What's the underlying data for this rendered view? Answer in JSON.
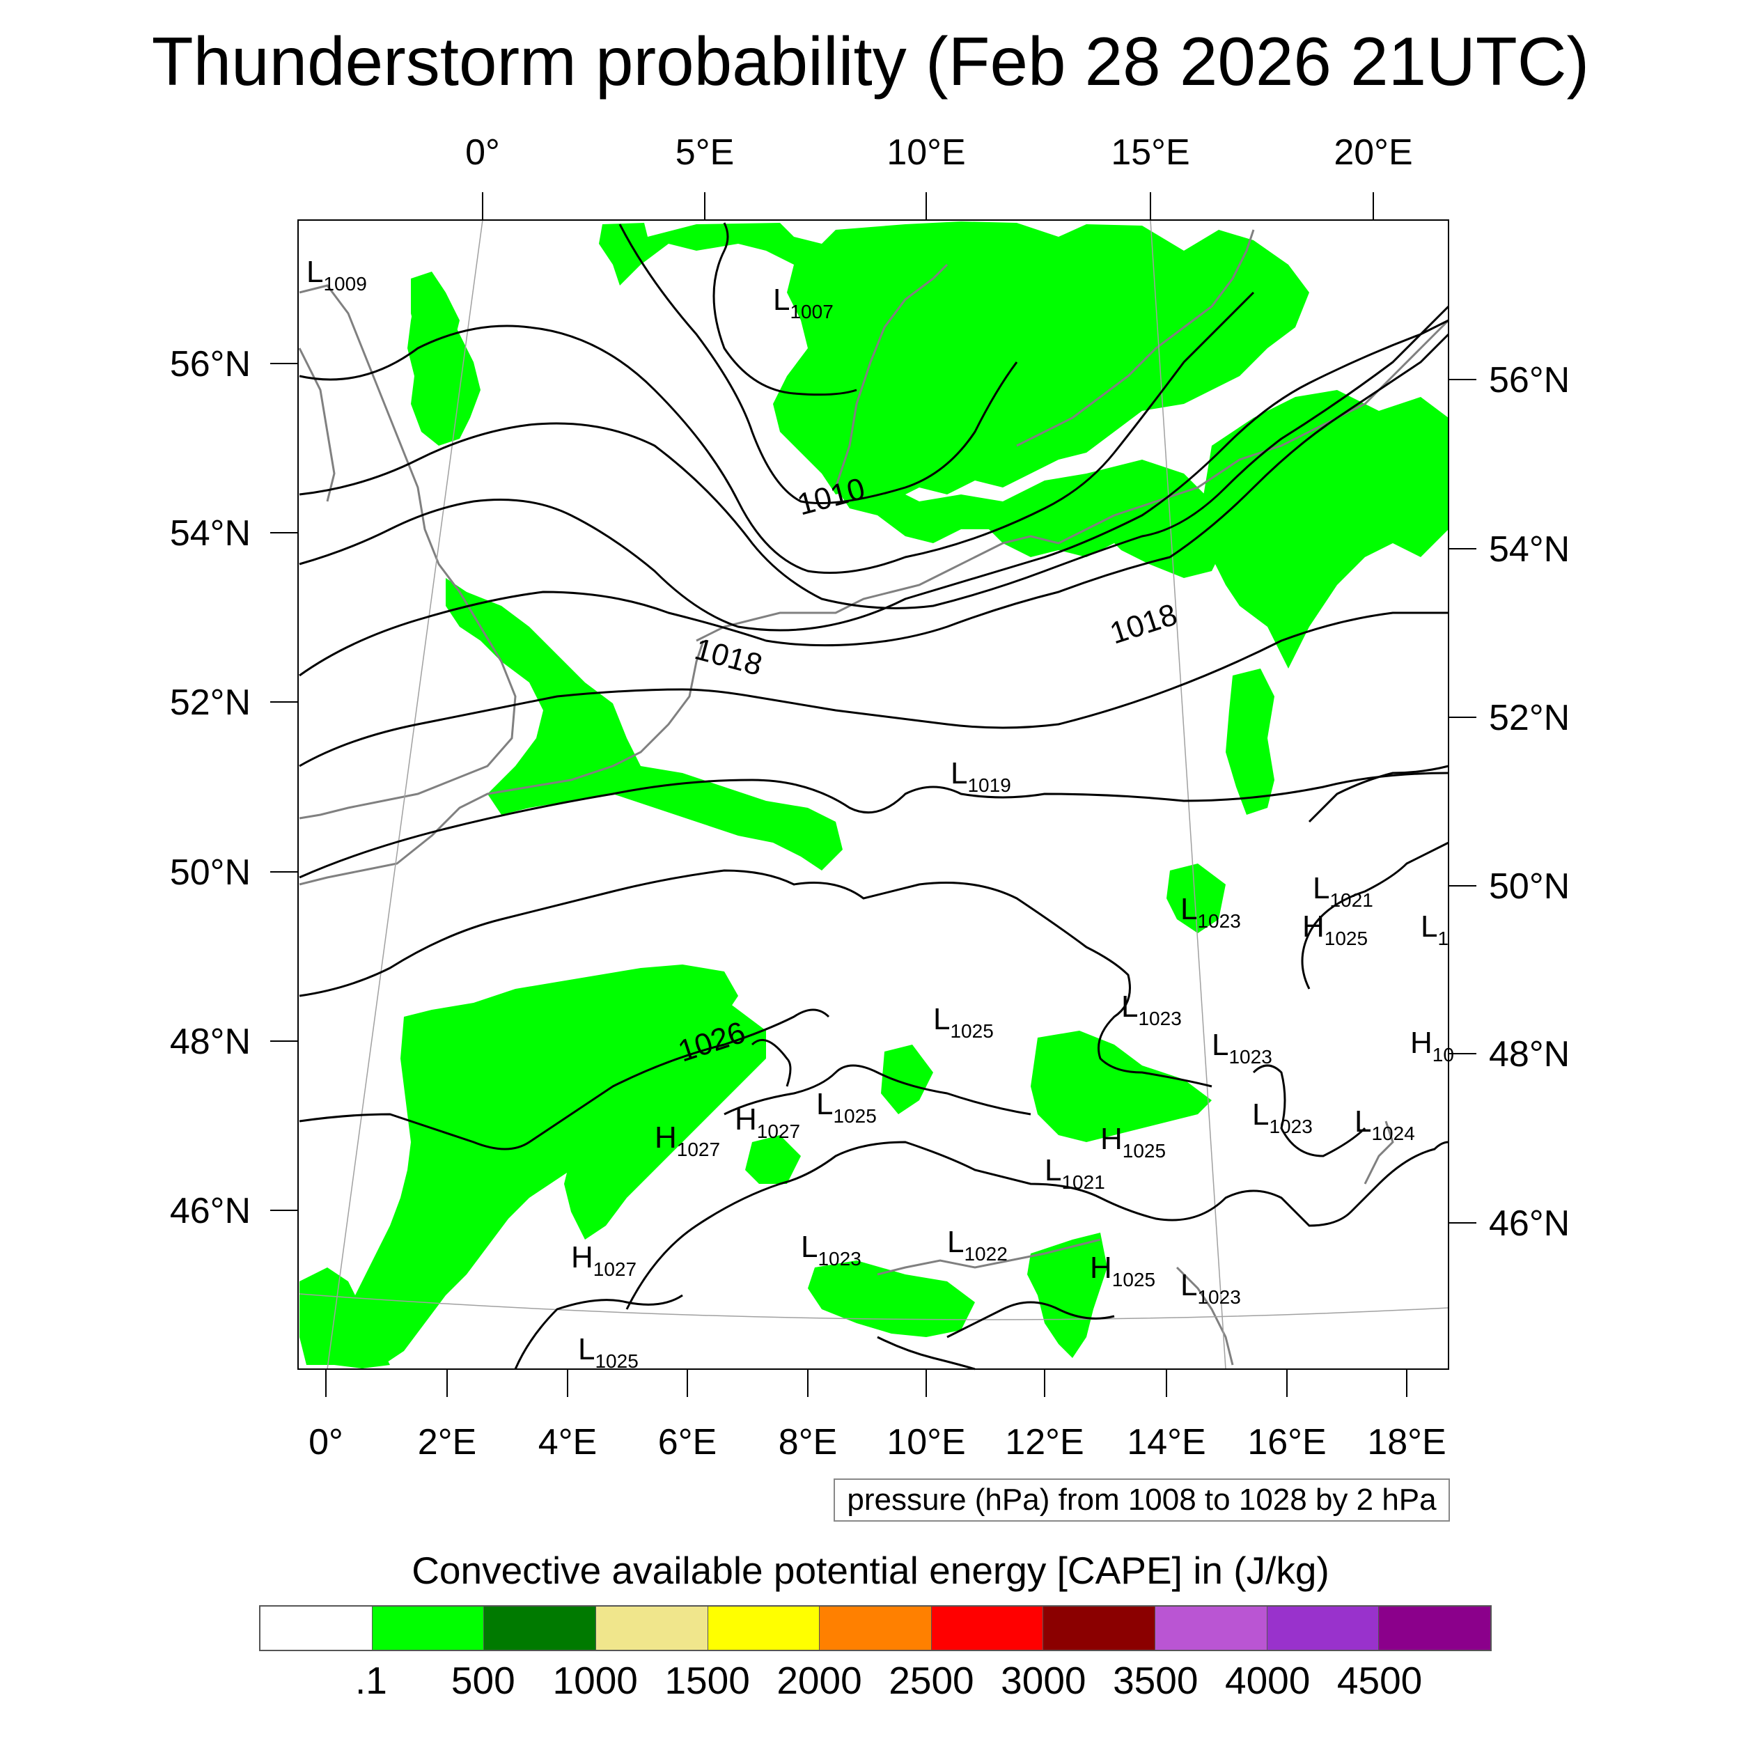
{
  "title": "Thunderstorm probability (Feb 28 2026 21UTC)",
  "top_lon_labels": [
    "0°",
    "5°E",
    "10°E",
    "15°E",
    "20°E"
  ],
  "bottom_lon_labels": [
    "0°",
    "2°E",
    "4°E",
    "6°E",
    "8°E",
    "10°E",
    "12°E",
    "14°E",
    "16°E",
    "18°E"
  ],
  "left_lat_labels": [
    "56°N",
    "54°N",
    "52°N",
    "50°N",
    "48°N",
    "46°N"
  ],
  "right_lat_labels": [
    "56°N",
    "54°N",
    "52°N",
    "50°N",
    "48°N",
    "46°N"
  ],
  "pressure_centers": [
    {
      "type": "L",
      "value": "1009"
    },
    {
      "type": "L",
      "value": "1007"
    },
    {
      "type": "L",
      "value": "1019"
    },
    {
      "type": "L",
      "value": "1021"
    },
    {
      "type": "H",
      "value": "1025"
    },
    {
      "type": "L",
      "value": "1023"
    },
    {
      "type": "L",
      "value": "1"
    },
    {
      "type": "L",
      "value": "1025"
    },
    {
      "type": "L",
      "value": "1023"
    },
    {
      "type": "L",
      "value": "1023"
    },
    {
      "type": "H",
      "value": "10"
    },
    {
      "type": "L",
      "value": "1025"
    },
    {
      "type": "H",
      "value": "1027"
    },
    {
      "type": "H",
      "value": "1027"
    },
    {
      "type": "L",
      "value": "1023"
    },
    {
      "type": "L",
      "value": "1024"
    },
    {
      "type": "H",
      "value": "1025"
    },
    {
      "type": "L",
      "value": "1021"
    },
    {
      "type": "H",
      "value": "1027"
    },
    {
      "type": "L",
      "value": "1023"
    },
    {
      "type": "L",
      "value": "1022"
    },
    {
      "type": "H",
      "value": "1025"
    },
    {
      "type": "L",
      "value": "1023"
    },
    {
      "type": "L",
      "value": "1025"
    }
  ],
  "contour_labels": [
    "1010",
    "1018",
    "1018",
    "1026"
  ],
  "contour_info": "pressure (hPa) from 1008 to 1028 by 2 hPa",
  "colorbar": {
    "title": "Convective available potential energy [CAPE] in (J/kg)",
    "colors": [
      "#ffffff",
      "#00ff00",
      "#007a00",
      "#f0e68c",
      "#ffff00",
      "#ff8000",
      "#ff0000",
      "#8b0000",
      "#ba55d3",
      "#9932cc",
      "#8b008b"
    ],
    "labels": [
      ".1",
      "500",
      "1000",
      "1500",
      "2000",
      "2500",
      "3000",
      "3500",
      "4000",
      "4500"
    ]
  },
  "colors": {
    "cape_green": "#00ff00",
    "contour": "#000000",
    "coast": "#808080",
    "grid": "#a0a0a0"
  }
}
